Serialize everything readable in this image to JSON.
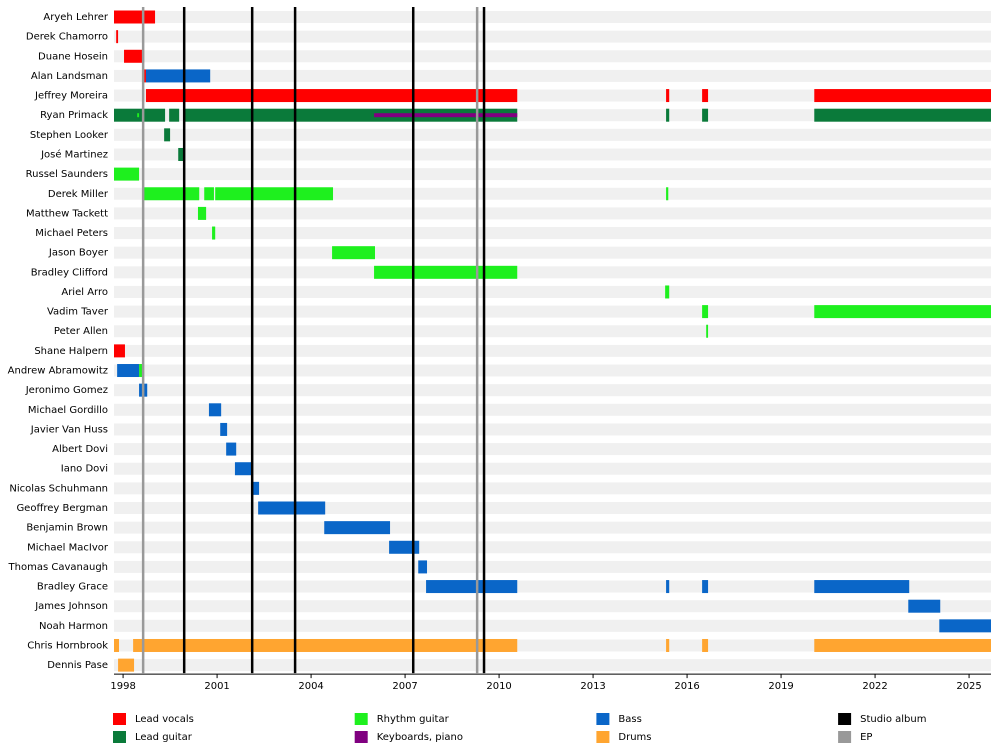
{
  "chart_data": {
    "type": "timeline",
    "categories": [
      "Aryeh Lehrer",
      "Derek Chamorro",
      "Duane Hosein",
      "Alan Landsman",
      "Jeffrey Moreira",
      "Ryan Primack",
      "Stephen Looker",
      "José Martinez",
      "Russel Saunders",
      "Derek Miller",
      "Matthew Tackett",
      "Michael Peters",
      "Jason Boyer",
      "Bradley Clifford",
      "Ariel Arro",
      "Vadim Taver",
      "Peter Allen",
      "Shane Halpern",
      "Andrew Abramowitz",
      "Jeronimo Gomez",
      "Michael Gordillo",
      "Javier Van Huss",
      "Albert Dovi",
      "Iano Dovi",
      "Nicolas Schuhmann",
      "Geoffrey Bergman",
      "Benjamin Brown",
      "Michael MacIvor",
      "Thomas Cavanaugh",
      "Bradley Grace",
      "James Johnson",
      "Noah Harmon",
      "Chris Hornbrook",
      "Dennis Pase"
    ],
    "series": [
      {
        "name": "Lead vocals",
        "color": "#ff0000",
        "periods": [
          [
            [
              1997.71,
              1999.02
            ]
          ],
          [
            [
              1997.78,
              1997.84
            ]
          ],
          [
            [
              1998.03,
              1998.67
            ]
          ],
          [
            [
              1998.61,
              1998.73
            ]
          ],
          [
            [
              1998.73,
              2010.58
            ],
            [
              2015.33,
              2015.43
            ],
            [
              2016.48,
              2016.67
            ],
            [
              2020.06,
              2025.7
            ]
          ],
          [],
          [],
          [],
          [],
          [],
          [],
          [],
          [],
          [],
          [],
          [],
          [],
          [
            [
              1997.71,
              1998.06
            ]
          ],
          [],
          [],
          [],
          [],
          [],
          [],
          [],
          [],
          [],
          [],
          [],
          [],
          [],
          [],
          [],
          []
        ]
      },
      {
        "name": "Lead guitar",
        "color": "#0a7a3a",
        "periods": [
          [],
          [],
          [],
          [],
          [],
          [
            [
              1997.71,
              1999.34
            ],
            [
              1999.47,
              1999.79
            ],
            [
              1999.95,
              2010.58
            ],
            [
              2015.33,
              2015.43
            ],
            [
              2016.48,
              2016.67
            ],
            [
              2020.06,
              2025.7
            ]
          ],
          [
            [
              1999.31,
              1999.5
            ]
          ],
          [
            [
              1999.76,
              1999.95
            ]
          ],
          [],
          [],
          [],
          [],
          [],
          [],
          [],
          [],
          [],
          [],
          [],
          [],
          [],
          [],
          [],
          [],
          [],
          [],
          [],
          [],
          [],
          [],
          [],
          [],
          [],
          []
        ]
      },
      {
        "name": "Rhythm guitar",
        "color": "#1ef01e",
        "periods": [
          [],
          [],
          [],
          [],
          [],
          [
            [
              1998.45,
              1998.51
            ]
          ],
          [],
          [],
          [
            [
              1997.71,
              1998.51
            ]
          ],
          [
            [
              1998.64,
              2000.43
            ],
            [
              2000.59,
              2000.9
            ],
            [
              2000.94,
              2004.7
            ],
            [
              2015.33,
              2015.4
            ]
          ],
          [
            [
              2000.39,
              2000.65
            ]
          ],
          [
            [
              2000.84,
              2000.94
            ]
          ],
          [
            [
              2004.67,
              2006.04
            ]
          ],
          [
            [
              2006.01,
              2010.58
            ]
          ],
          [
            [
              2015.3,
              2015.43
            ]
          ],
          [
            [
              2016.48,
              2016.67
            ],
            [
              2020.06,
              2025.7
            ]
          ],
          [
            [
              2016.61,
              2016.67
            ]
          ],
          [],
          [
            [
              1998.51,
              1998.64
            ]
          ],
          [],
          [],
          [],
          [],
          [],
          [],
          [],
          [],
          [],
          [],
          [],
          [],
          [],
          [],
          []
        ]
      },
      {
        "name": "Keyboards, piano",
        "color": "#800080",
        "periods": [
          [],
          [],
          [],
          [],
          [],
          [
            [
              2006.01,
              2010.58
            ]
          ],
          [],
          [],
          [],
          [],
          [],
          [],
          [],
          [],
          [],
          [],
          [],
          [],
          [],
          [],
          [],
          [],
          [],
          [],
          [],
          [],
          [],
          [],
          [],
          [],
          [],
          [],
          [],
          []
        ]
      },
      {
        "name": "Bass",
        "color": "#0a66c8",
        "periods": [
          [],
          [],
          [],
          [
            [
              1998.73,
              2000.78
            ]
          ],
          [],
          [],
          [],
          [],
          [],
          [],
          [],
          [],
          [],
          [],
          [],
          [],
          [],
          [],
          [
            [
              1997.81,
              1998.51
            ]
          ],
          [
            [
              1998.51,
              1998.77
            ]
          ],
          [
            [
              2000.74,
              2001.13
            ]
          ],
          [
            [
              2001.1,
              2001.32
            ]
          ],
          [
            [
              2001.29,
              2001.61
            ]
          ],
          [
            [
              2001.57,
              2002.12
            ]
          ],
          [
            [
              2002.09,
              2002.34
            ]
          ],
          [
            [
              2002.31,
              2004.45
            ]
          ],
          [
            [
              2004.42,
              2006.52
            ]
          ],
          [
            [
              2006.49,
              2007.45
            ]
          ],
          [
            [
              2007.42,
              2007.7
            ]
          ],
          [
            [
              2007.67,
              2010.58
            ],
            [
              2015.33,
              2015.43
            ],
            [
              2016.48,
              2016.67
            ],
            [
              2020.06,
              2023.09
            ]
          ],
          [
            [
              2023.06,
              2024.08
            ]
          ],
          [
            [
              2024.05,
              2025.7
            ]
          ],
          [],
          []
        ]
      },
      {
        "name": "Drums",
        "color": "#ffa530",
        "periods": [
          [],
          [],
          [],
          [],
          [],
          [],
          [],
          [],
          [],
          [],
          [],
          [],
          [],
          [],
          [],
          [],
          [],
          [],
          [],
          [],
          [],
          [],
          [],
          [],
          [],
          [],
          [],
          [],
          [],
          [],
          [],
          [],
          [
            [
              1997.71,
              1997.87
            ],
            [
              1998.32,
              2010.58
            ],
            [
              2015.33,
              2015.43
            ],
            [
              2016.48,
              2016.67
            ],
            [
              2020.06,
              2025.7
            ]
          ],
          [
            [
              1997.84,
              1998.35
            ]
          ]
        ]
      }
    ],
    "markers": [
      {
        "name": "Studio album",
        "color": "#000000",
        "x": [
          1999.95,
          2002.12,
          2003.49,
          2007.26,
          2009.52
        ]
      },
      {
        "name": "EP",
        "color": "#999999",
        "x": [
          1998.64,
          2009.3
        ]
      }
    ],
    "xlim": [
      1997.71,
      2025.7
    ],
    "xticks": [
      1998,
      2001,
      2004,
      2007,
      2010,
      2013,
      2016,
      2019,
      2022,
      2025
    ]
  }
}
